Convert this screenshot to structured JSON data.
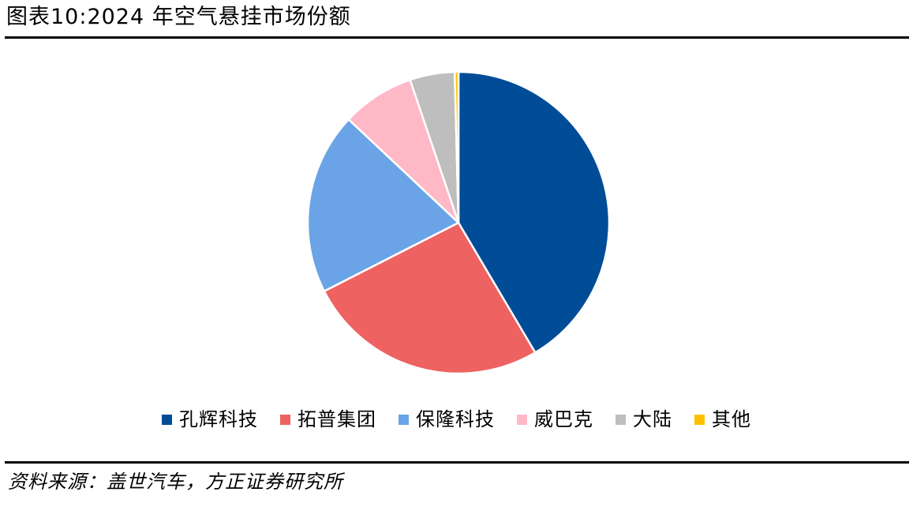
{
  "figure_title": "图表10:2024 年空气悬挂市场份额",
  "source_note": "资料来源：盖世汽车，方正证券研究所",
  "colors": {
    "孔辉科技": "#004C97",
    "拓普集团": "#EE6262",
    "保隆科技": "#6AA4E6",
    "威巴克": "#FFB8C6",
    "大陆": "#BEBEBE",
    "其他": "#FFC000"
  },
  "chart_data": {
    "type": "pie",
    "title": "",
    "start_angle_deg": 90,
    "direction": "clockwise",
    "legend_position": "bottom",
    "slices": [
      {
        "label": "孔辉科技",
        "value": 41.5,
        "color": "#004C97"
      },
      {
        "label": "拓普集团",
        "value": 26.0,
        "color": "#EE6262"
      },
      {
        "label": "保隆科技",
        "value": 19.5,
        "color": "#6AA4E6"
      },
      {
        "label": "威巴克",
        "value": 7.8,
        "color": "#FFB8C6"
      },
      {
        "label": "大陆",
        "value": 4.8,
        "color": "#BEBEBE"
      },
      {
        "label": "其他",
        "value": 0.4,
        "color": "#FFC000"
      }
    ]
  }
}
